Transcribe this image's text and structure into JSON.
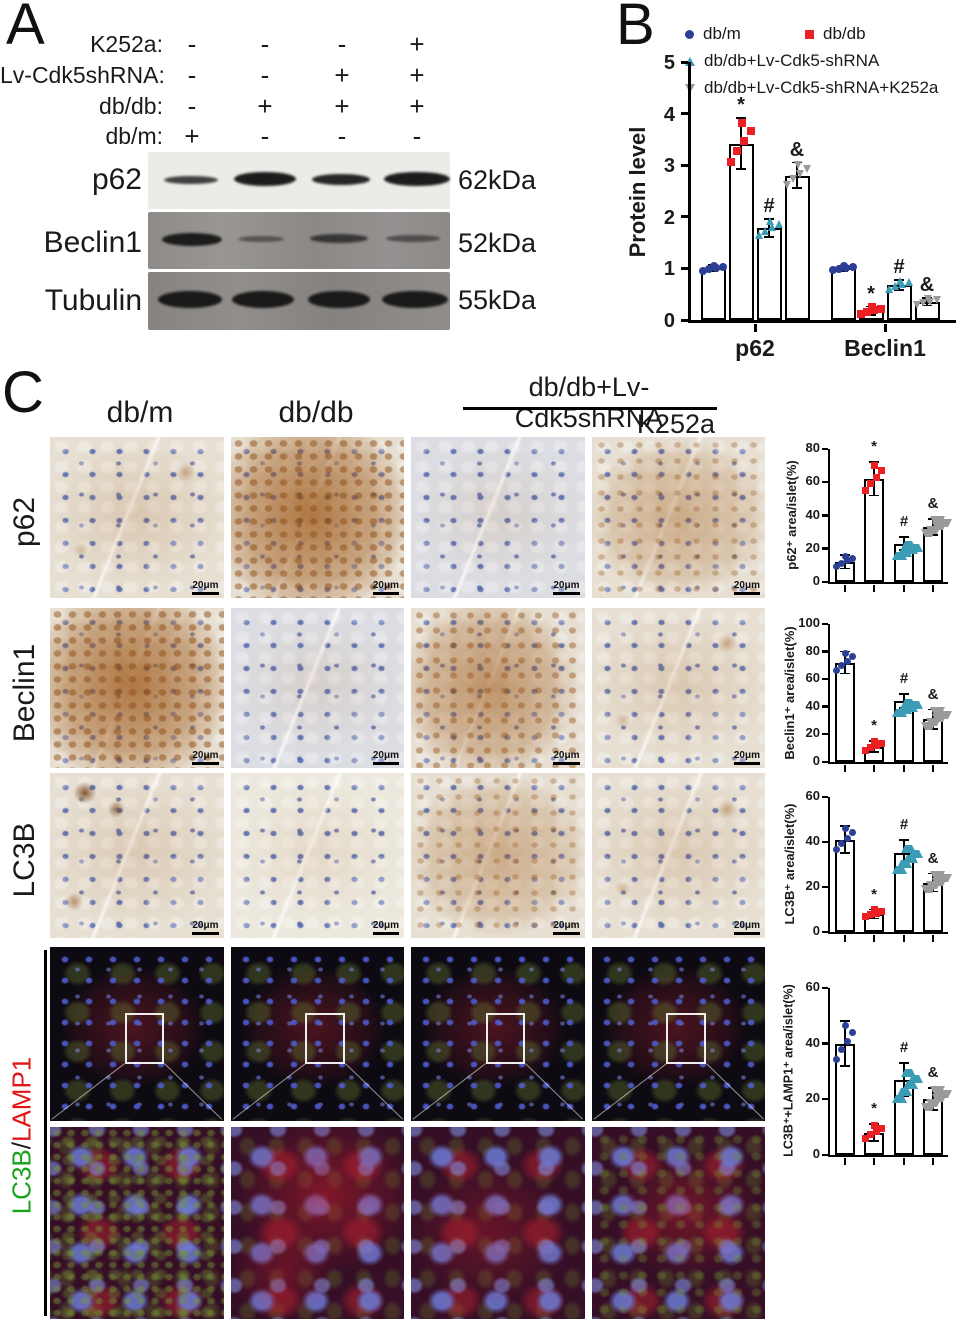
{
  "figure": {
    "panel_labels": {
      "a": "A",
      "b": "B",
      "c": "C"
    }
  },
  "panel_a": {
    "treatment_rows": [
      {
        "label": "K252a:",
        "signs": [
          "-",
          "-",
          "-",
          "+"
        ]
      },
      {
        "label": "Lv-Cdk5shRNA:",
        "signs": [
          "-",
          "-",
          "+",
          "+"
        ]
      },
      {
        "label": "db/db:",
        "signs": [
          "-",
          "+",
          "+",
          "+"
        ]
      },
      {
        "label": "db/m:",
        "signs": [
          "+",
          "-",
          "-",
          "-"
        ]
      }
    ],
    "blots": [
      {
        "label": "p62",
        "kda": "62kDa"
      },
      {
        "label": "Beclin1",
        "kda": "52kDa"
      },
      {
        "label": "Tubulin",
        "kda": "55kDa"
      }
    ]
  },
  "panel_b": {
    "legend": [
      {
        "label": "db/m",
        "marker": "circle",
        "color": "#2b3f94"
      },
      {
        "label": "db/db",
        "marker": "square",
        "color": "#ec2024"
      },
      {
        "label": "db/db+Lv-Cdk5-shRNA",
        "marker": "triangle-up",
        "color": "#3a9cb5"
      },
      {
        "label": "db/db+Lv-Cdk5-shRNA+K252a",
        "marker": "triangle-down",
        "color": "#9a9a9c"
      }
    ]
  },
  "panel_c": {
    "col_headers": [
      "db/m",
      "db/db"
    ],
    "fraction_header": {
      "numerator": "db/db+Lv-Cdk5shRNA",
      "denominator": "K252a"
    },
    "row_labels": [
      "p62",
      "Beclin1",
      "LC3B"
    ],
    "if_row_label": {
      "lc3b": "LC3B",
      "slash": "/",
      "lamp1": "LAMP1"
    },
    "scale_bar": "20μm"
  },
  "chart_data": [
    {
      "id": "protein_level",
      "type": "bar",
      "ylabel": "Protein level",
      "ylim": [
        0,
        5
      ],
      "yticks": [
        0,
        1,
        2,
        3,
        4,
        5
      ],
      "categories": [
        "p62",
        "Beclin1"
      ],
      "legend_position": "top",
      "grid": false,
      "series": [
        {
          "name": "db/m",
          "marker": "circle",
          "color": "#2b3f94",
          "values": [
            1.0,
            1.0
          ],
          "errors": [
            0.06,
            0.05
          ],
          "sig": [
            "",
            ""
          ]
        },
        {
          "name": "db/db",
          "marker": "square",
          "color": "#ec2024",
          "values": [
            3.42,
            0.18
          ],
          "errors": [
            0.5,
            0.08
          ],
          "sig": [
            "*",
            "*"
          ]
        },
        {
          "name": "db/db+Lv-Cdk5-shRNA",
          "marker": "triangle-up",
          "color": "#3a9cb5",
          "values": [
            1.78,
            0.68
          ],
          "errors": [
            0.18,
            0.1
          ],
          "sig": [
            "#",
            "#"
          ]
        },
        {
          "name": "db/db+Lv-Cdk5-shRNA+K252a",
          "marker": "triangle-down",
          "color": "#9a9a9c",
          "values": [
            2.8,
            0.35
          ],
          "errors": [
            0.25,
            0.07
          ],
          "sig": [
            "&",
            "&"
          ]
        }
      ]
    },
    {
      "id": "p62_area",
      "type": "bar",
      "ylabel": "p62⁺ area/islet(%)",
      "ylim": [
        0,
        80
      ],
      "yticks": [
        0,
        20,
        40,
        60,
        80
      ],
      "groups": [
        "db/m",
        "db/db",
        "db/db+Lv-Cdk5-shRNA",
        "db/db+Lv-Cdk5-shRNA+K252a"
      ],
      "values": [
        12,
        62,
        23,
        33
      ],
      "errors": [
        4,
        10,
        4,
        5
      ],
      "sig": [
        "",
        "*",
        "#",
        "&"
      ],
      "colors": [
        "#2b3f94",
        "#ec2024",
        "#3a9cb5",
        "#9a9a9c"
      ],
      "markers": [
        "circle",
        "square",
        "triangle-up",
        "triangle-down"
      ]
    },
    {
      "id": "beclin1_area",
      "type": "bar",
      "ylabel": "Beclin1⁺ area/islet(%)",
      "ylim": [
        0,
        100
      ],
      "yticks": [
        0,
        20,
        40,
        60,
        80,
        100
      ],
      "groups": [
        "db/m",
        "db/db",
        "db/db+Lv-Cdk5-shRNA",
        "db/db+Lv-Cdk5-shRNA+K252a"
      ],
      "values": [
        72,
        11,
        44,
        31
      ],
      "errors": [
        8,
        4,
        5,
        7
      ],
      "sig": [
        "",
        "*",
        "#",
        "&"
      ],
      "colors": [
        "#2b3f94",
        "#ec2024",
        "#3a9cb5",
        "#9a9a9c"
      ],
      "markers": [
        "circle",
        "square",
        "triangle-up",
        "triangle-down"
      ]
    },
    {
      "id": "lc3b_area",
      "type": "bar",
      "ylabel": "LC3B⁺ area/islet(%)",
      "ylim": [
        0,
        60
      ],
      "yticks": [
        0,
        20,
        40,
        60
      ],
      "groups": [
        "db/m",
        "db/db",
        "db/db+Lv-Cdk5-shRNA",
        "db/db+Lv-Cdk5-shRNA+K252a"
      ],
      "values": [
        41,
        8,
        35,
        22
      ],
      "errors": [
        6,
        2,
        6,
        4
      ],
      "sig": [
        "",
        "*",
        "#",
        "&"
      ],
      "colors": [
        "#2b3f94",
        "#ec2024",
        "#3a9cb5",
        "#9a9a9c"
      ],
      "markers": [
        "circle",
        "square",
        "triangle-up",
        "triangle-down"
      ]
    },
    {
      "id": "lc3b_lamp1_area",
      "type": "bar",
      "ylabel": "LC3B⁺+LAMP1⁺ area/islet(%)",
      "ylim": [
        0,
        60
      ],
      "yticks": [
        0,
        20,
        40,
        60
      ],
      "groups": [
        "db/m",
        "db/db",
        "db/db+Lv-Cdk5-shRNA",
        "db/db+Lv-Cdk5-shRNA+K252a"
      ],
      "values": [
        40,
        8,
        27,
        20
      ],
      "errors": [
        8,
        3,
        6,
        4
      ],
      "sig": [
        "",
        "*",
        "#",
        "&"
      ],
      "colors": [
        "#2b3f94",
        "#ec2024",
        "#3a9cb5",
        "#9a9a9c"
      ],
      "markers": [
        "circle",
        "square",
        "triangle-up",
        "triangle-down"
      ]
    }
  ]
}
